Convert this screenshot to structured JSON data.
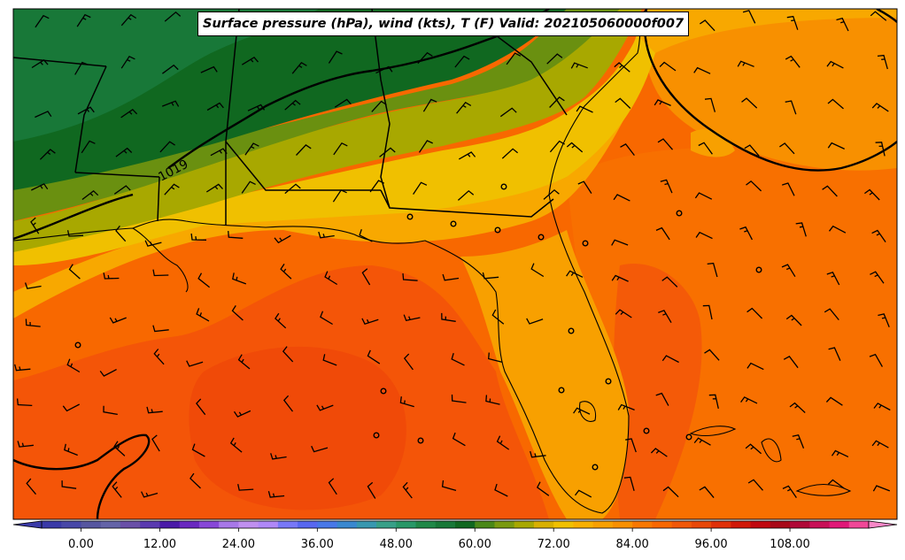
{
  "map": {
    "title": "Surface pressure (hPa), wind (kts), T (F) Valid: 202105060000f007",
    "isobar_labels": [
      "1019"
    ]
  },
  "colorbar": {
    "tick_labels": [
      "0.00",
      "12.00",
      "24.00",
      "36.00",
      "48.00",
      "60.00",
      "72.00",
      "84.00",
      "96.00",
      "108.00"
    ],
    "min": -6,
    "max": 120,
    "step": 3,
    "colors": [
      "#3a3aa8",
      "#4848a8",
      "#5656a0",
      "#6464a8",
      "#6a50a8",
      "#5a3ab0",
      "#4a1aa8",
      "#6a28c0",
      "#8848d8",
      "#a878e8",
      "#c090f0",
      "#b088f8",
      "#7878f8",
      "#5868f0",
      "#4878e8",
      "#3a88d0",
      "#3898b0",
      "#38a088",
      "#289868",
      "#208848",
      "#187838",
      "#106820",
      "#4a8818",
      "#7a9a10",
      "#a8a800",
      "#d8b000",
      "#f0c000",
      "#f8b000",
      "#f8a000",
      "#f89000",
      "#f87800",
      "#f86800",
      "#f05808",
      "#e84808",
      "#e03008",
      "#d01808",
      "#c00810",
      "#a80818",
      "#b00838",
      "#c81058",
      "#e01878",
      "#f04898",
      "#f888c8"
    ],
    "unit_name": "temperature-F"
  }
}
